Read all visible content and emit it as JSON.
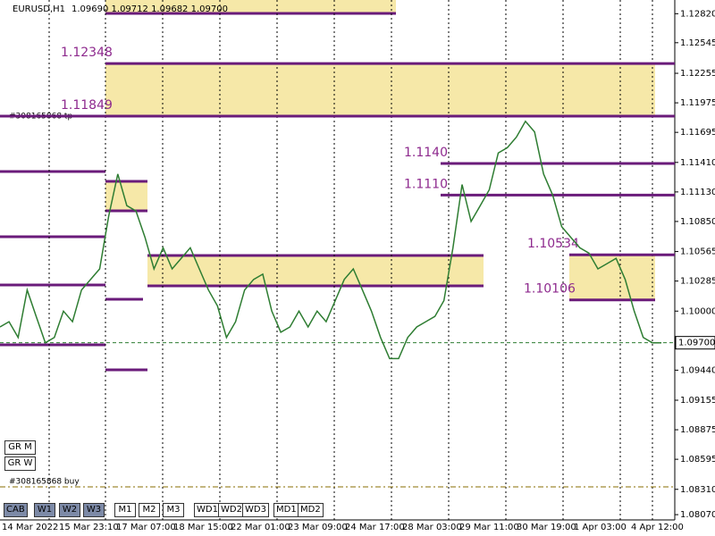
{
  "chart_data": {
    "type": "line",
    "title": "EURUSD,H1",
    "subtitle": "1.09690 1.09712 1.09682 1.09700",
    "series": [
      {
        "name": "EURUSD",
        "color": "#2e7d32",
        "values": [
          1.0985,
          1.099,
          1.0975,
          1.102,
          1.0995,
          1.097,
          1.0975,
          1.1,
          1.099,
          1.102,
          1.103,
          1.104,
          1.109,
          1.113,
          1.11,
          1.1095,
          1.107,
          1.104,
          1.106,
          1.104,
          1.105,
          1.106,
          1.104,
          1.102,
          1.1005,
          1.0975,
          1.099,
          1.102,
          1.103,
          1.1035,
          1.1,
          1.098,
          1.0985,
          1.1,
          1.0985,
          1.1,
          1.099,
          1.101,
          1.103,
          1.104,
          1.102,
          1.1,
          1.0975,
          1.0955,
          1.0955,
          1.0975,
          1.0985,
          1.099,
          1.0995,
          1.101,
          1.106,
          1.112,
          1.1085,
          1.11,
          1.1115,
          1.115,
          1.1155,
          1.1165,
          1.118,
          1.117,
          1.113,
          1.111,
          1.108,
          1.107,
          1.106,
          1.1055,
          1.104,
          1.1045,
          1.105,
          1.103,
          1.1,
          1.0975,
          1.097,
          1.097
        ]
      }
    ],
    "ylim": [
      1.0802,
      1.1295
    ],
    "yticks": [
      {
        "value": 1.1282,
        "label": "1.12820"
      },
      {
        "value": 1.12545,
        "label": "1.12545"
      },
      {
        "value": 1.12255,
        "label": "1.12255"
      },
      {
        "value": 1.11975,
        "label": "1.11975"
      },
      {
        "value": 1.11695,
        "label": "1.11695"
      },
      {
        "value": 1.1141,
        "label": "1.11410"
      },
      {
        "value": 1.1113,
        "label": "1.11130"
      },
      {
        "value": 1.1085,
        "label": "1.10850"
      },
      {
        "value": 1.10565,
        "label": "1.10565"
      },
      {
        "value": 1.10285,
        "label": "1.10285"
      },
      {
        "value": 1.1,
        "label": "1.10000"
      },
      {
        "value": 1.0944,
        "label": "1.09440"
      },
      {
        "value": 1.09155,
        "label": "1.09155"
      },
      {
        "value": 1.08875,
        "label": "1.08875"
      },
      {
        "value": 1.08595,
        "label": "1.08595"
      },
      {
        "value": 1.0831,
        "label": "1.08310"
      },
      {
        "value": 1.0807,
        "label": "1.08070"
      }
    ],
    "time_labels": [
      "14 Mar 2022",
      "15 Mar 23:10",
      "17 Mar 07:00",
      "18 Mar 15:00",
      "22 Mar 01:00",
      "23 Mar 09:00",
      "24 Mar 17:00",
      "28 Mar 03:00",
      "29 Mar 11:00",
      "30 Mar 19:00",
      "1 Apr 03:00",
      "4 Apr 12:00"
    ],
    "levels": [
      1.12348,
      1.11849,
      {
        "value": 1.114,
        "label": "1.1140"
      },
      {
        "value": 1.111,
        "label": "1.1110"
      },
      1.10534,
      1.10106
    ],
    "last_price": {
      "value": 1.097,
      "label": "1.09700"
    },
    "order_labels": [
      "#308165868 tp",
      "#308165868 buy"
    ]
  },
  "ui": {
    "buttons": [
      "GR M",
      "GR W",
      "CAB",
      "W1",
      "W2",
      "W3",
      "M1",
      "M2",
      "M3",
      "WD1",
      "WD2",
      "WD3",
      "MD1",
      "MD2"
    ]
  }
}
